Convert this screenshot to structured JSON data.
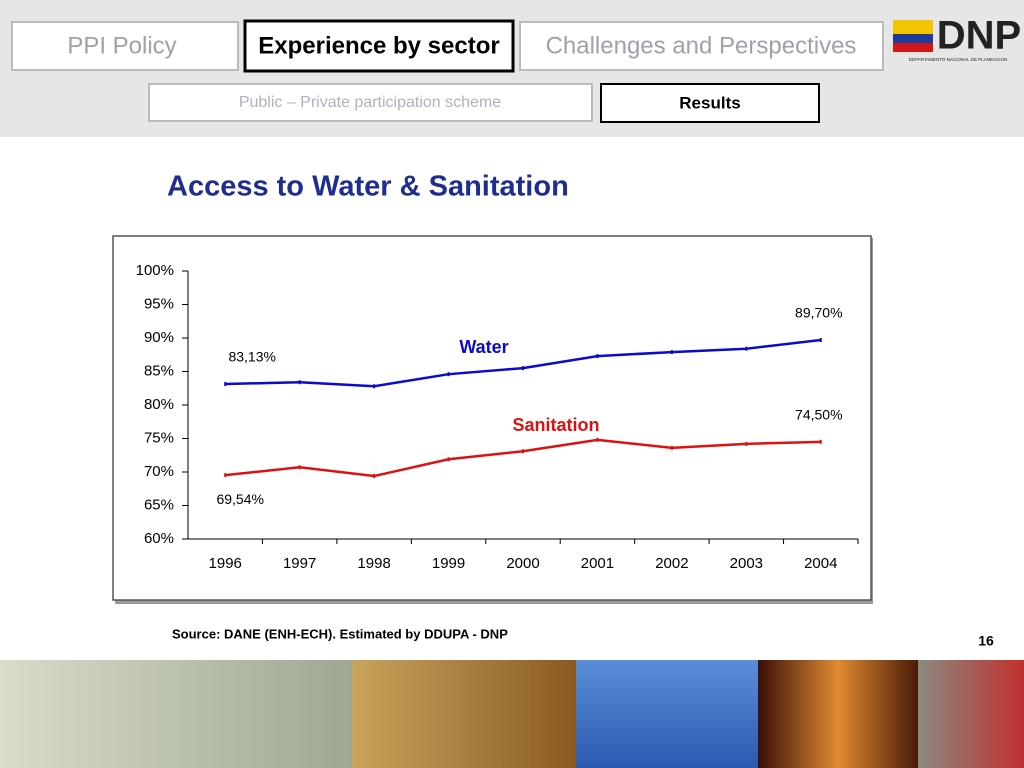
{
  "nav": {
    "tabs": [
      "PPI Policy",
      "Experience by sector",
      "Challenges and Perspectives"
    ],
    "subtabs": [
      "Public – Private participation scheme",
      "Results"
    ]
  },
  "logo": {
    "name": "DNP",
    "subtitle": "DEPARTAMENTO NACIONAL DE PLANEACION"
  },
  "chart_data": {
    "type": "line",
    "title": "Access to Water & Sanitation",
    "categories": [
      "1996",
      "1997",
      "1998",
      "1999",
      "2000",
      "2001",
      "2002",
      "2003",
      "2004"
    ],
    "series": [
      {
        "name": "Water",
        "color": "#0b0bcc",
        "values": [
          83.13,
          83.4,
          82.8,
          84.6,
          85.5,
          87.3,
          87.9,
          88.4,
          89.7
        ],
        "value_labels": [
          "83,13%",
          null,
          null,
          null,
          null,
          null,
          null,
          null,
          "89,70%"
        ]
      },
      {
        "name": "Sanitation",
        "color": "#dd1111",
        "values": [
          69.54,
          70.7,
          69.4,
          71.9,
          73.1,
          74.8,
          73.6,
          74.2,
          74.5
        ],
        "value_labels": [
          "69,54%",
          null,
          null,
          null,
          null,
          null,
          null,
          null,
          "74,50%"
        ]
      }
    ],
    "ylim": [
      60,
      100
    ],
    "yticks": [
      {
        "value": 60,
        "label": "60%"
      },
      {
        "value": 65,
        "label": "65%"
      },
      {
        "value": 70,
        "label": "70%"
      },
      {
        "value": 75,
        "label": "75%"
      },
      {
        "value": 80,
        "label": "80%"
      },
      {
        "value": 85,
        "label": "85%"
      },
      {
        "value": 90,
        "label": "90%"
      },
      {
        "value": 95,
        "label": "95%"
      },
      {
        "value": 100,
        "label": "100%"
      }
    ],
    "grid": false
  },
  "footer": {
    "source": "Source: DANE (ENH-ECH). Estimated by DDUPA - DNP",
    "page": "16"
  }
}
